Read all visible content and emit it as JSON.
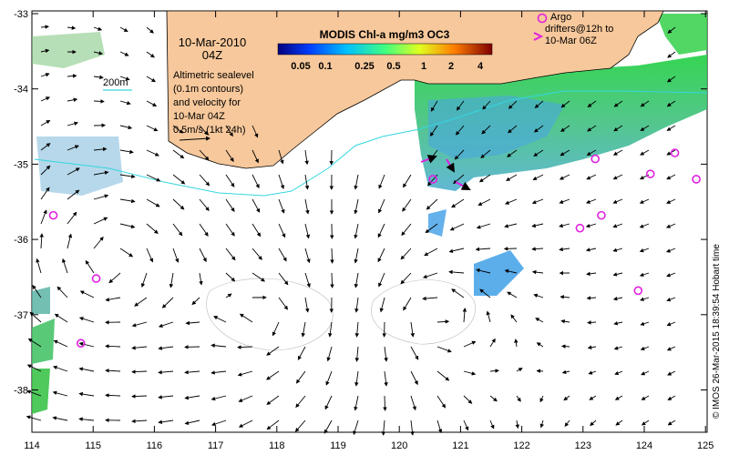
{
  "date_title": "10-Mar-2010",
  "time_title": "04Z",
  "colorbar": {
    "title": "MODIS Chl-a mg/m3 OC3",
    "ticks": [
      "0.05",
      "0.1",
      "0.25",
      "0.5",
      "1",
      "2",
      "4"
    ]
  },
  "scale_label": "200m",
  "altimetry_note": [
    "Altimetric sealevel",
    "(0.1m contours)",
    "and velocity for",
    "10-Mar 04Z",
    "0.5m/s (1kt 24h)"
  ],
  "argo_legend": [
    "Argo",
    "drifters@12h to",
    "10-Mar 06Z"
  ],
  "credit": "© IMOS 26-Mar-2015 18:39:54 Hobart time",
  "lat_ticks": [
    "-33",
    "-34",
    "-35",
    "-36",
    "-37",
    "-38"
  ],
  "lon_ticks": [
    "114",
    "115",
    "116",
    "117",
    "118",
    "119",
    "120",
    "121",
    "122",
    "123",
    "124",
    "125"
  ],
  "colors": {
    "land": "#f7c89b",
    "argo": "#e020e0",
    "contour200": "#35d6e0"
  },
  "argo_floats": [
    {
      "lon": 114.35,
      "lat": -35.68
    },
    {
      "lon": 115.05,
      "lat": -36.52
    },
    {
      "lon": 114.8,
      "lat": -37.38
    },
    {
      "lon": 120.55,
      "lat": -35.2
    },
    {
      "lon": 123.2,
      "lat": -34.93
    },
    {
      "lon": 123.3,
      "lat": -35.68
    },
    {
      "lon": 122.95,
      "lat": -35.85
    },
    {
      "lon": 124.1,
      "lat": -35.13
    },
    {
      "lon": 124.5,
      "lat": -34.85
    },
    {
      "lon": 124.85,
      "lat": -35.2
    },
    {
      "lon": 123.9,
      "lat": -36.68
    }
  ]
}
